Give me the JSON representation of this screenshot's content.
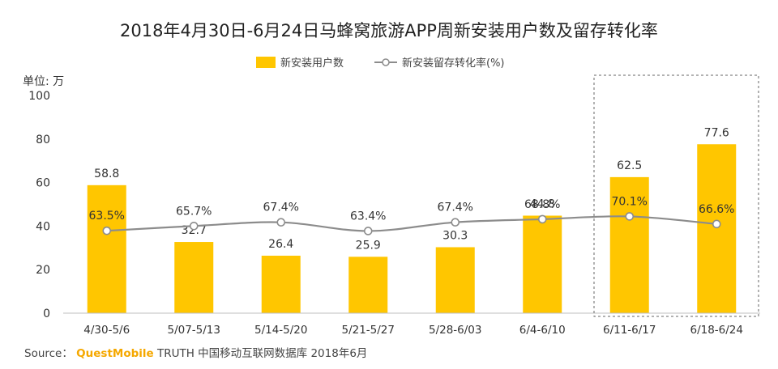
{
  "chart_data": {
    "type": "bar",
    "title": "2018年4月30日-6月24日马蜂窝旅游APP周新安装用户数及留存转化率",
    "unit_label": "单位: 万",
    "categories": [
      "4/30-5/6",
      "5/07-5/13",
      "5/14-5/20",
      "5/21-5/27",
      "5/28-6/03",
      "6/4-6/10",
      "6/11-6/17",
      "6/18-6/24"
    ],
    "series": [
      {
        "name": "新安装用户数",
        "type": "bar",
        "values": [
          58.8,
          32.7,
          26.4,
          25.9,
          30.3,
          44.8,
          62.5,
          77.6
        ],
        "labels": [
          "58.8",
          "32.7",
          "26.4",
          "25.9",
          "30.3",
          "44.8",
          "62.5",
          "77.6"
        ],
        "color": "#ffc600"
      },
      {
        "name": "新安装留存转化率(%)",
        "type": "line",
        "values": [
          63.5,
          65.7,
          67.4,
          63.4,
          67.4,
          68.8,
          70.1,
          66.6
        ],
        "labels": [
          "63.5%",
          "65.7%",
          "67.4%",
          "63.4%",
          "67.4%",
          "68.8%",
          "70.1%",
          "66.6%"
        ],
        "color": "#8c8c8c"
      }
    ],
    "ylim": [
      0,
      100
    ],
    "yticks": [
      0,
      20,
      40,
      60,
      80,
      100
    ],
    "grid": false,
    "legend_position": "top-center",
    "highlight_categories": [
      "6/11-6/17",
      "6/18-6/24"
    ]
  },
  "source": {
    "prefix": "Source：",
    "brand": "QuestMobile",
    "rest": "TRUTH 中国移动互联网数据库 2018年6月"
  }
}
